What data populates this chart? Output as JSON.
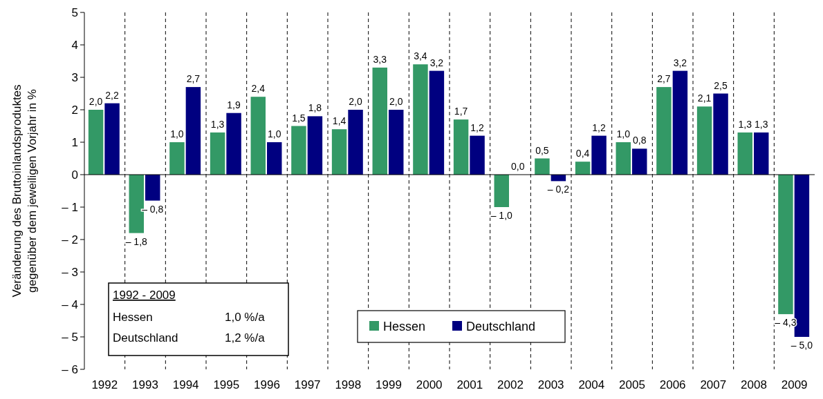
{
  "chart_data": {
    "type": "bar",
    "ylabel": "Veränderung des Bruttoinlandsproduktes\ngegenüber dem jeweiligen Vorjahr in %",
    "categories": [
      "1992",
      "1993",
      "1994",
      "1995",
      "1996",
      "1997",
      "1998",
      "1999",
      "2000",
      "2001",
      "2002",
      "2003",
      "2004",
      "2005",
      "2006",
      "2007",
      "2008",
      "2009"
    ],
    "series": [
      {
        "name": "Hessen",
        "color": "#339966",
        "values": [
          2.0,
          -1.8,
          1.0,
          1.3,
          2.4,
          1.5,
          1.4,
          3.3,
          3.4,
          1.7,
          -1.0,
          0.5,
          0.4,
          1.0,
          2.7,
          2.1,
          1.3,
          -4.3
        ],
        "value_labels": [
          "2,0",
          "– 1,8",
          "1,0",
          "1,3",
          "2,4",
          "1,5",
          "1,4",
          "3,3",
          "3,4",
          "1,7",
          "– 1,0",
          "0,5",
          "0,4",
          "1,0",
          "2,7",
          "2,1",
          "1,3",
          "– 4,3"
        ]
      },
      {
        "name": "Deutschland",
        "color": "#000080",
        "values": [
          2.2,
          -0.8,
          2.7,
          1.9,
          1.0,
          1.8,
          2.0,
          2.0,
          3.2,
          1.2,
          0.0,
          -0.2,
          1.2,
          0.8,
          3.2,
          2.5,
          1.3,
          -5.0
        ],
        "value_labels": [
          "2,2",
          "– 0,8",
          "2,7",
          "1,9",
          "1,0",
          "1,8",
          "2,0",
          "2,0",
          "3,2",
          "1,2",
          "0,0",
          "– 0,2",
          "1,2",
          "0,8",
          "3,2",
          "2,5",
          "1,3",
          "– 5,0"
        ]
      }
    ],
    "ylim": [
      -6,
      5
    ],
    "yticks": [
      {
        "value": -6,
        "label": "– 6"
      },
      {
        "value": -5,
        "label": "– 5"
      },
      {
        "value": -4,
        "label": "– 4"
      },
      {
        "value": -3,
        "label": "– 3"
      },
      {
        "value": -2,
        "label": "– 2"
      },
      {
        "value": -1,
        "label": "– 1"
      },
      0,
      1,
      2,
      3,
      4,
      5
    ],
    "grid": "x",
    "legend": "bottom",
    "annotations": [
      "1992 - 2009",
      "Hessen",
      "1,0 %/a",
      "Deutschland",
      "1,2 %/a"
    ]
  }
}
